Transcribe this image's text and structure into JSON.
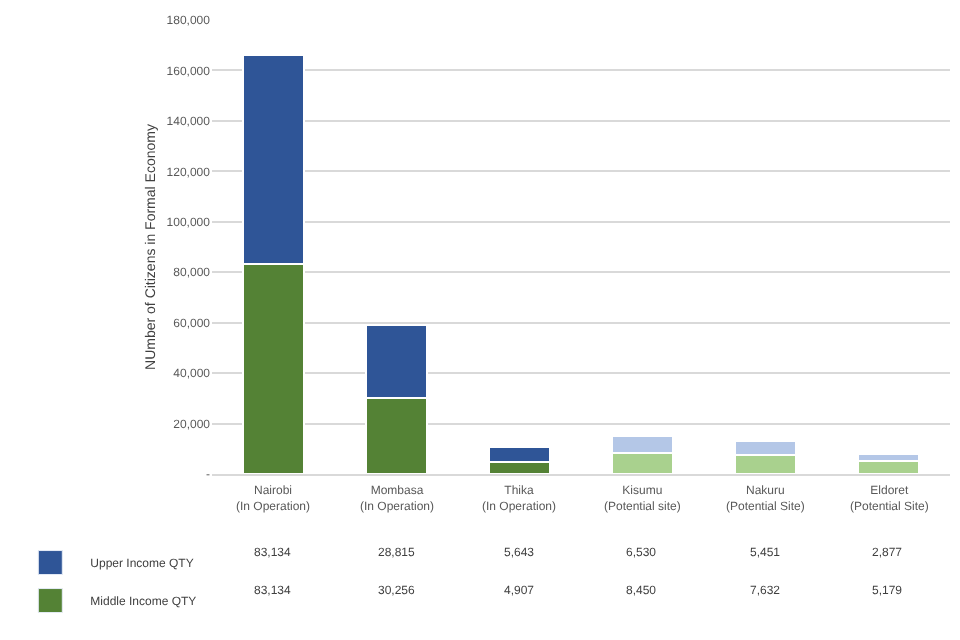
{
  "chart_data": {
    "type": "bar",
    "stacked": true,
    "ylabel": "NUmber of Citizens in Formal Economy",
    "categories": [
      "Nairobi (In Operation)",
      "Mombasa (In Operation)",
      "Thika (In Operation)",
      "Kisumu (Potential site)",
      "Nakuru (Potential Site)",
      "Eldoret (Potential Site)"
    ],
    "series": [
      {
        "name": "Middle Income QTY",
        "color": "#548235",
        "colors": [
          "#548235",
          "#548235",
          "#548235",
          "#a9d18e",
          "#a9d18e",
          "#a9d18e"
        ],
        "values": [
          83134,
          30256,
          4907,
          8450,
          7632,
          5179
        ],
        "value_labels": [
          "83,134",
          "30,256",
          "4,907",
          "8,450",
          "7,632",
          "5,179"
        ]
      },
      {
        "name": "Upper Income QTY",
        "color": "#2f5597",
        "colors": [
          "#2f5597",
          "#2f5597",
          "#2f5597",
          "#b4c7e7",
          "#b4c7e7",
          "#b4c7e7"
        ],
        "values": [
          83134,
          28815,
          5643,
          6530,
          5451,
          2877
        ],
        "value_labels": [
          "83,134",
          "28,815",
          "5,643",
          "6,530",
          "5,451",
          "2,877"
        ]
      }
    ],
    "ylim": [
      0,
      180000
    ],
    "yticks": [
      {
        "value": 0,
        "label": "-"
      },
      {
        "value": 20000,
        "label": "20,000"
      },
      {
        "value": 40000,
        "label": "40,000"
      },
      {
        "value": 60000,
        "label": "60,000"
      },
      {
        "value": 80000,
        "label": "80,000"
      },
      {
        "value": 100000,
        "label": "100,000"
      },
      {
        "value": 120000,
        "label": "120,000"
      },
      {
        "value": 140000,
        "label": "140,000"
      },
      {
        "value": 160000,
        "label": "160,000"
      },
      {
        "value": 180000,
        "label": "180,000"
      }
    ],
    "grid": "y",
    "legend": "bottom left"
  }
}
